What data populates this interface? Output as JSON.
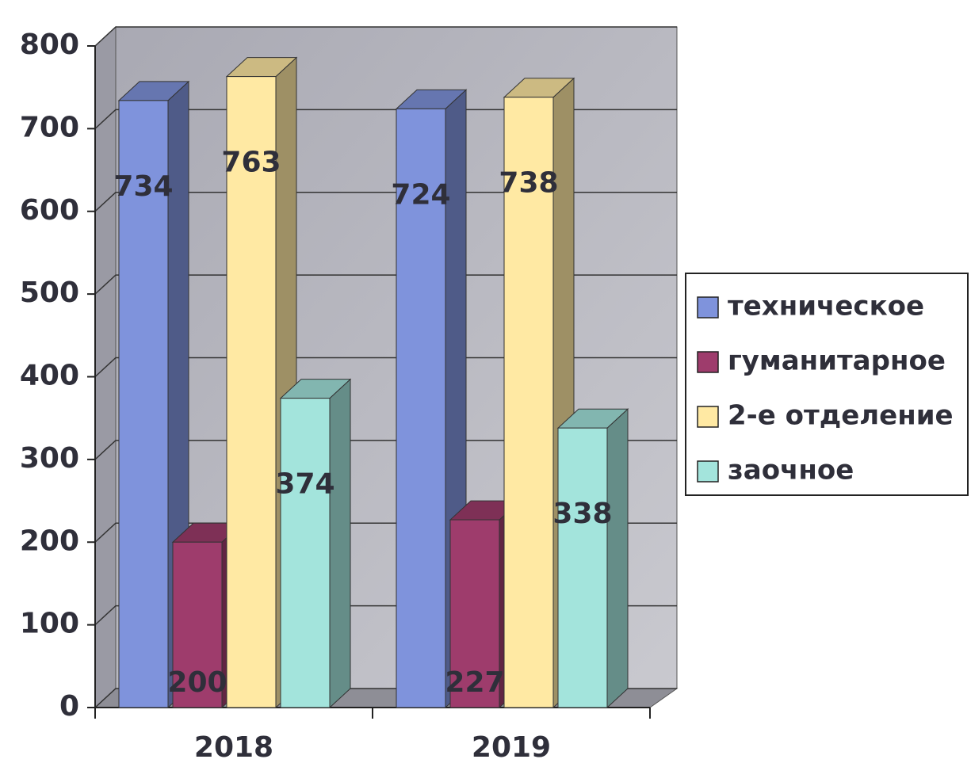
{
  "chart_data": {
    "type": "bar3d",
    "categories": [
      "2018",
      "2019"
    ],
    "series": [
      {
        "name": "техническое",
        "color": "#7f93dc",
        "values": [
          734,
          724
        ]
      },
      {
        "name": "гуманитарное",
        "color": "#9e3c6c",
        "values": [
          200,
          227
        ]
      },
      {
        "name": "2-е отделение",
        "color": "#ffe9a3",
        "values": [
          763,
          738
        ]
      },
      {
        "name": "заочное",
        "color": "#a3e4dc",
        "values": [
          374,
          338
        ]
      }
    ],
    "ylim": [
      0,
      800
    ],
    "yticks": [
      0,
      100,
      200,
      300,
      400,
      500,
      600,
      700,
      800
    ],
    "grid": true,
    "legend": "right"
  }
}
